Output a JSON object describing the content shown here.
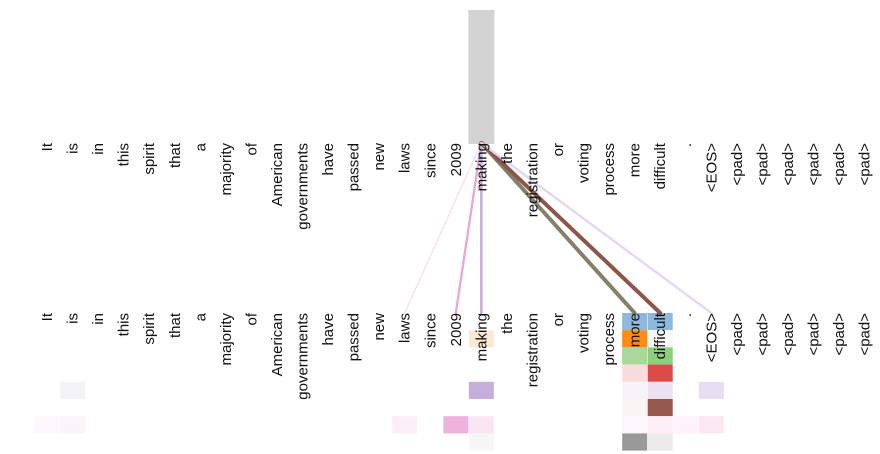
{
  "tokens": [
    "It",
    "is",
    "in",
    "this",
    "spirit",
    "that",
    "a",
    "majority",
    "of",
    "American",
    "governments",
    "have",
    "passed",
    "new",
    "laws",
    "since",
    "2009",
    "making",
    "the",
    "registration",
    "or",
    "voting",
    "process",
    "more",
    "difficult",
    ".",
    "<EOS>",
    "<pad>",
    "<pad>",
    "<pad>",
    "<pad>",
    "<pad>",
    "<pad>"
  ],
  "selected_token_index": 17,
  "highlight_color": "#d3d3d3",
  "attention_links": [
    {
      "to": 14,
      "color": "#f7e4ee",
      "weight": 0.18
    },
    {
      "to": 16,
      "color": "#e8a7d5",
      "weight": 0.45
    },
    {
      "to": 17,
      "color": "#c5b0d5",
      "weight": 0.55
    },
    {
      "to": 23,
      "color": "#85806a",
      "weight": 1.0
    },
    {
      "to": 24,
      "color": "#8c564b",
      "weight": 1.0
    },
    {
      "to": 26,
      "color": "#e3d9f0",
      "weight": 0.5
    }
  ],
  "head_colors": [
    "#1f77b4",
    "#ff7f0e",
    "#2ca02c",
    "#d62728",
    "#9467bd",
    "#8c564b",
    "#e377c2",
    "#7f7f7f",
    "#bcbd22",
    "#17becf"
  ],
  "attention_cells": [
    {
      "col": 23,
      "row": 0,
      "color": "#8fb8dc",
      "alpha": 1.0
    },
    {
      "col": 24,
      "row": 0,
      "color": "#8fb8dc",
      "alpha": 1.0
    },
    {
      "col": 23,
      "row": 1,
      "color": "#ff8c1a",
      "alpha": 1.0
    },
    {
      "col": 24,
      "row": 1,
      "color": "#f7f7f7",
      "alpha": 1.0
    },
    {
      "col": 17,
      "row": 1,
      "color": "#fbe9d6",
      "alpha": 1.0
    },
    {
      "col": 23,
      "row": 2,
      "color": "#a9d89a",
      "alpha": 1.0
    },
    {
      "col": 24,
      "row": 2,
      "color": "#8ccf7e",
      "alpha": 1.0
    },
    {
      "col": 23,
      "row": 3,
      "color": "#f9dcdc",
      "alpha": 1.0
    },
    {
      "col": 24,
      "row": 3,
      "color": "#dd4a4a",
      "alpha": 1.0
    },
    {
      "col": 1,
      "row": 4,
      "color": "#f3f3f6",
      "alpha": 1.0
    },
    {
      "col": 17,
      "row": 4,
      "color": "#c5aedb",
      "alpha": 1.0
    },
    {
      "col": 23,
      "row": 4,
      "color": "#f7f3fa",
      "alpha": 1.0
    },
    {
      "col": 24,
      "row": 4,
      "color": "#ebe1f3",
      "alpha": 1.0
    },
    {
      "col": 26,
      "row": 4,
      "color": "#e7def3",
      "alpha": 1.0
    },
    {
      "col": 23,
      "row": 5,
      "color": "#fbf5f3",
      "alpha": 1.0
    },
    {
      "col": 24,
      "row": 5,
      "color": "#93574b",
      "alpha": 1.0
    },
    {
      "col": 0,
      "row": 6,
      "color": "#fdf8fb",
      "alpha": 1.0
    },
    {
      "col": 1,
      "row": 6,
      "color": "#fbf4f9",
      "alpha": 1.0
    },
    {
      "col": 14,
      "row": 6,
      "color": "#fbeef6",
      "alpha": 1.0
    },
    {
      "col": 16,
      "row": 6,
      "color": "#efb1dd",
      "alpha": 1.0
    },
    {
      "col": 17,
      "row": 6,
      "color": "#fae6f3",
      "alpha": 1.0
    },
    {
      "col": 23,
      "row": 6,
      "color": "#fdf6fa",
      "alpha": 1.0
    },
    {
      "col": 24,
      "row": 6,
      "color": "#fbeef6",
      "alpha": 1.0
    },
    {
      "col": 25,
      "row": 6,
      "color": "#fdf3f9",
      "alpha": 1.0
    },
    {
      "col": 26,
      "row": 6,
      "color": "#fbe8f3",
      "alpha": 1.0
    },
    {
      "col": 17,
      "row": 7,
      "color": "#f7f7f7",
      "alpha": 1.0
    },
    {
      "col": 23,
      "row": 7,
      "color": "#999999",
      "alpha": 1.0
    },
    {
      "col": 24,
      "row": 7,
      "color": "#ebebeb",
      "alpha": 1.0
    }
  ]
}
